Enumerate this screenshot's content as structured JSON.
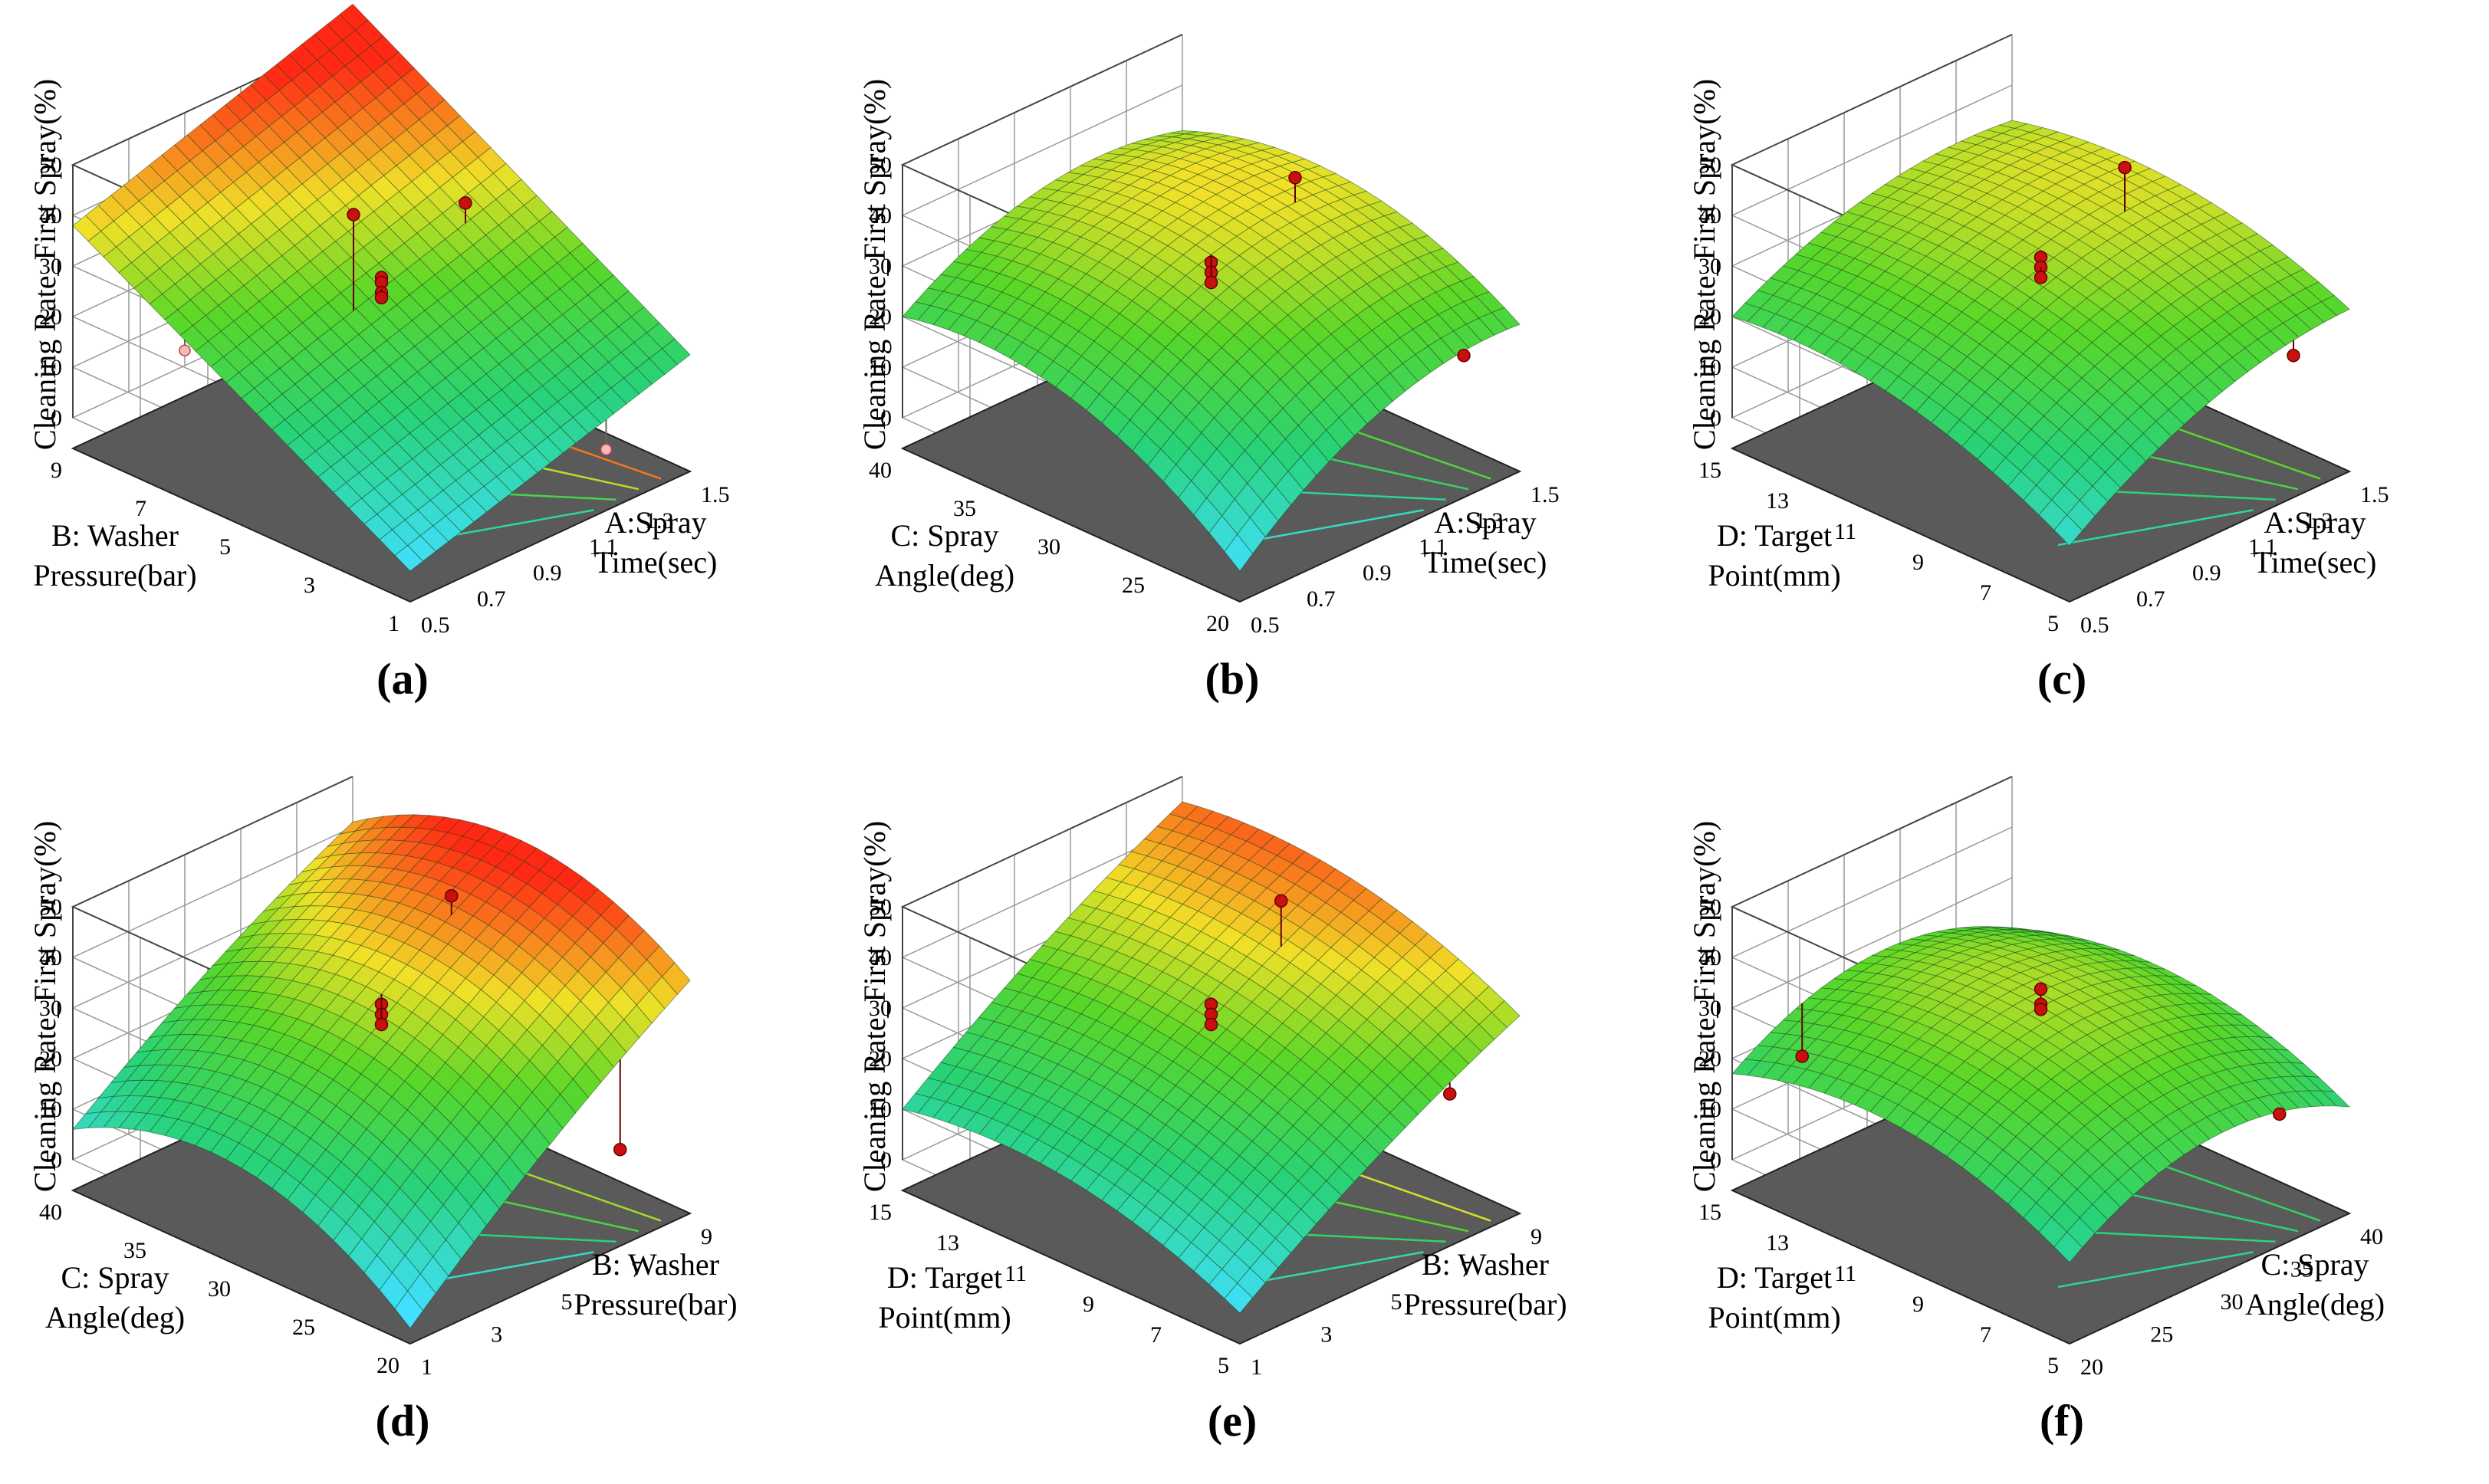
{
  "figure": {
    "z_label": "Cleaning Rate_First Spray(%)",
    "z_ticks": [
      "0",
      "10",
      "20",
      "30",
      "40",
      "50"
    ],
    "z_range": [
      0,
      50
    ]
  },
  "chart_data": [
    {
      "type": "surface",
      "panel_label": "(a)",
      "title": "",
      "xlabel": [
        "A:Spray",
        "Time(sec)"
      ],
      "ylabel": [
        "B: Washer",
        "Pressure(bar)"
      ],
      "zlabel": "Cleaning Rate_First Spray(%)",
      "x_ticks": [
        "0.5",
        "0.7",
        "0.9",
        "1.1",
        "1.3",
        "1.5"
      ],
      "y_ticks": [
        "1",
        "3",
        "5",
        "7",
        "9"
      ],
      "xlim": [
        0.5,
        1.5
      ],
      "ylim": [
        1,
        9
      ],
      "zlim": [
        0,
        50
      ],
      "corner_values": {
        "x_low_y_low": 0,
        "x_high_y_low": 17,
        "x_low_y_high": 38,
        "x_high_y_high": 56
      },
      "curvature_x": 0,
      "curvature_y": 0,
      "design_points_above": [
        [
          0.9,
          5,
          45
        ],
        [
          1.3,
          5,
          37
        ],
        [
          1.0,
          5,
          30
        ],
        [
          1.0,
          5,
          29
        ],
        [
          1.0,
          5,
          27
        ],
        [
          1.0,
          5,
          26
        ]
      ],
      "design_points_below": [
        [
          0.9,
          9,
          3
        ],
        [
          1.2,
          1,
          6
        ]
      ]
    },
    {
      "type": "surface",
      "panel_label": "(b)",
      "title": "",
      "xlabel": [
        "A:Spray",
        "Time(sec)"
      ],
      "ylabel": [
        "C: Spray",
        "Angle(deg)"
      ],
      "zlabel": "Cleaning Rate_First Spray(%)",
      "x_ticks": [
        "0.5",
        "0.7",
        "0.9",
        "1.1",
        "1.3",
        "1.5"
      ],
      "y_ticks": [
        "20",
        "25",
        "30",
        "35",
        "40"
      ],
      "xlim": [
        0.5,
        1.5
      ],
      "ylim": [
        20,
        40
      ],
      "zlim": [
        0,
        50
      ],
      "corner_values": {
        "x_low_y_low": 0,
        "x_high_y_low": 23,
        "x_low_y_high": 20,
        "x_high_y_high": 31
      },
      "curvature_x": 7,
      "curvature_y": 9,
      "design_points_above": [
        [
          1.3,
          30,
          42
        ],
        [
          1.0,
          30,
          33
        ],
        [
          1.0,
          30,
          31
        ],
        [
          1.0,
          30,
          29
        ],
        [
          1.3,
          20,
          22
        ]
      ],
      "design_points_below": [
        [
          0.9,
          40,
          4
        ]
      ]
    },
    {
      "type": "surface",
      "panel_label": "(c)",
      "title": "",
      "xlabel": [
        "A:Spray",
        "Time(sec)"
      ],
      "ylabel": [
        "D: Target",
        "Point(mm)"
      ],
      "zlabel": "Cleaning Rate_First Spray(%)",
      "x_ticks": [
        "0.5",
        "0.7",
        "0.9",
        "1.1",
        "1.3",
        "1.5"
      ],
      "y_ticks": [
        "5",
        "7",
        "9",
        "11",
        "13",
        "15"
      ],
      "xlim": [
        0.5,
        1.5
      ],
      "ylim": [
        5,
        15
      ],
      "zlim": [
        0,
        50
      ],
      "corner_values": {
        "x_low_y_low": 5,
        "x_high_y_low": 26,
        "x_low_y_high": 20,
        "x_high_y_high": 33
      },
      "curvature_x": 5,
      "curvature_y": 6,
      "design_points_above": [
        [
          1.3,
          10,
          44
        ],
        [
          1.0,
          10,
          34
        ],
        [
          1.0,
          10,
          32
        ],
        [
          1.0,
          10,
          30
        ],
        [
          1.3,
          5,
          22
        ]
      ],
      "design_points_below": [
        [
          0.9,
          15,
          2
        ]
      ]
    },
    {
      "type": "surface",
      "panel_label": "(d)",
      "title": "",
      "xlabel": [
        "B: Washer",
        "Pressure(bar)"
      ],
      "ylabel": [
        "C: Spray",
        "Angle(deg)"
      ],
      "zlabel": "Cleaning Rate_First Spray(%)",
      "x_ticks": [
        "1",
        "3",
        "5",
        "7",
        "9"
      ],
      "y_ticks": [
        "20",
        "25",
        "30",
        "35",
        "40"
      ],
      "xlim": [
        1,
        9
      ],
      "ylim": [
        20,
        40
      ],
      "zlim": [
        0,
        50
      ],
      "corner_values": {
        "x_low_y_low": -3,
        "x_high_y_low": 40,
        "x_low_y_high": 6,
        "x_high_y_high": 41
      },
      "curvature_x": 2,
      "curvature_y": 12,
      "design_points_above": [
        [
          7,
          30,
          48
        ],
        [
          5,
          30,
          33
        ],
        [
          5,
          30,
          31
        ],
        [
          5,
          30,
          29
        ],
        [
          7,
          20,
          13
        ]
      ],
      "design_points_below": [
        [
          5,
          40,
          3
        ]
      ]
    },
    {
      "type": "surface",
      "panel_label": "(e)",
      "title": "",
      "xlabel": [
        "B: Washer",
        "Pressure(bar)"
      ],
      "ylabel": [
        "D: Target",
        "Point(mm)"
      ],
      "zlabel": "Cleaning Rate_First Spray(%)",
      "x_ticks": [
        "1",
        "3",
        "5",
        "7",
        "9"
      ],
      "y_ticks": [
        "5",
        "7",
        "9",
        "11",
        "13",
        "15"
      ],
      "xlim": [
        1,
        9
      ],
      "ylim": [
        5,
        15
      ],
      "zlim": [
        0,
        50
      ],
      "corner_values": {
        "x_low_y_low": 0,
        "x_high_y_low": 33,
        "x_low_y_high": 10,
        "x_high_y_high": 45
      },
      "curvature_x": 2,
      "curvature_y": 6,
      "design_points_above": [
        [
          7,
          10,
          47
        ],
        [
          5,
          10,
          33
        ],
        [
          5,
          10,
          31
        ],
        [
          5,
          10,
          29
        ],
        [
          7,
          5,
          24
        ]
      ],
      "design_points_below": [
        [
          5,
          15,
          3
        ]
      ]
    },
    {
      "type": "surface",
      "panel_label": "(f)",
      "title": "",
      "xlabel": [
        "C: Spray",
        "Angle(deg)"
      ],
      "ylabel": [
        "D: Target",
        "Point(mm)"
      ],
      "zlabel": "Cleaning Rate_First Spray(%)",
      "x_ticks": [
        "20",
        "25",
        "30",
        "35",
        "40"
      ],
      "y_ticks": [
        "5",
        "7",
        "9",
        "11",
        "13",
        "15"
      ],
      "xlim": [
        20,
        40
      ],
      "ylim": [
        5,
        15
      ],
      "zlim": [
        0,
        50
      ],
      "corner_values": {
        "x_low_y_low": 10,
        "x_high_y_low": 15,
        "x_low_y_high": 17,
        "x_high_y_high": 20
      },
      "curvature_x": 9,
      "curvature_y": 8,
      "design_points_above": [
        [
          30,
          10,
          36
        ],
        [
          30,
          10,
          33
        ],
        [
          30,
          10,
          32
        ],
        [
          35,
          5,
          20
        ],
        [
          25,
          15,
          14
        ]
      ],
      "design_points_below": []
    }
  ]
}
